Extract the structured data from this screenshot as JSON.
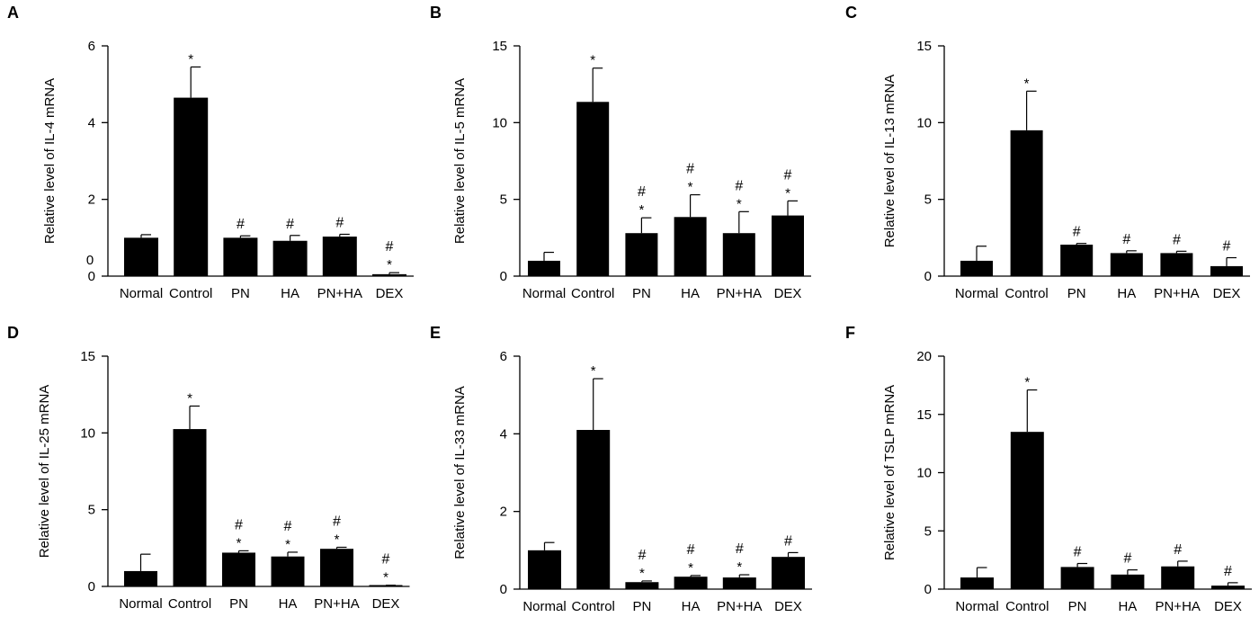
{
  "chart_data": [
    {
      "panel": "A",
      "type": "bar",
      "categories": [
        "Normal",
        "Control",
        "PN",
        "HA",
        "PN+HA",
        "DEX"
      ],
      "values": [
        1.0,
        4.65,
        1.0,
        0.92,
        1.03,
        0.05
      ],
      "errors": [
        0.08,
        0.8,
        0.05,
        0.14,
        0.06,
        0.04
      ],
      "marks": [
        [],
        [
          "*"
        ],
        [
          "#"
        ],
        [
          "#"
        ],
        [
          "#"
        ],
        [
          "#",
          "*"
        ]
      ],
      "ylabel": "Relative level of IL-4 mRNA",
      "ylim": [
        0,
        6
      ],
      "yticks": [
        0,
        2,
        4,
        6
      ],
      "extra_label": "0"
    },
    {
      "panel": "B",
      "type": "bar",
      "categories": [
        "Normal",
        "Control",
        "PN",
        "HA",
        "PN+HA",
        "DEX"
      ],
      "values": [
        1.0,
        11.35,
        2.8,
        3.85,
        2.8,
        3.95
      ],
      "errors": [
        0.55,
        2.2,
        1.0,
        1.45,
        1.4,
        0.95
      ],
      "marks": [
        [],
        [
          "*"
        ],
        [
          "#",
          "*"
        ],
        [
          "#",
          "*"
        ],
        [
          "#",
          "*"
        ],
        [
          "#",
          "*"
        ]
      ],
      "ylabel": "Relative level of IL-5 mRNA",
      "ylim": [
        0,
        15
      ],
      "yticks": [
        0,
        5,
        10,
        15
      ]
    },
    {
      "panel": "C",
      "type": "bar",
      "categories": [
        "Normal",
        "Control",
        "PN",
        "HA",
        "PN+HA",
        "DEX"
      ],
      "values": [
        1.0,
        9.5,
        2.05,
        1.5,
        1.5,
        0.65
      ],
      "errors": [
        0.95,
        2.55,
        0.08,
        0.15,
        0.12,
        0.55
      ],
      "marks": [
        [],
        [
          "*"
        ],
        [
          "#"
        ],
        [
          "#"
        ],
        [
          "#"
        ],
        [
          "#"
        ]
      ],
      "ylabel": "Relative level of IL-13 mRNA",
      "ylim": [
        0,
        15
      ],
      "yticks": [
        0,
        5,
        10,
        15
      ]
    },
    {
      "panel": "D",
      "type": "bar",
      "categories": [
        "Normal",
        "Control",
        "PN",
        "HA",
        "PN+HA",
        "DEX"
      ],
      "values": [
        1.0,
        10.25,
        2.2,
        1.95,
        2.45,
        0.05
      ],
      "errors": [
        1.1,
        1.5,
        0.12,
        0.28,
        0.1,
        0.03
      ],
      "marks": [
        [],
        [
          "*"
        ],
        [
          "#",
          "*"
        ],
        [
          "#",
          "*"
        ],
        [
          "#",
          "*"
        ],
        [
          "#",
          "*"
        ]
      ],
      "ylabel": "Relative level of IL-25 mRNA",
      "ylim": [
        0,
        15
      ],
      "yticks": [
        0,
        5,
        10,
        15
      ]
    },
    {
      "panel": "E",
      "type": "bar",
      "categories": [
        "Normal",
        "Control",
        "PN",
        "HA",
        "PN+HA",
        "DEX"
      ],
      "values": [
        1.0,
        4.1,
        0.18,
        0.32,
        0.3,
        0.83
      ],
      "errors": [
        0.2,
        1.32,
        0.03,
        0.03,
        0.07,
        0.11
      ],
      "marks": [
        [],
        [
          "*"
        ],
        [
          "#",
          "*"
        ],
        [
          "#",
          "*"
        ],
        [
          "#",
          "*"
        ],
        [
          "#"
        ]
      ],
      "ylabel": "Relative level of IL-33 mRNA",
      "ylim": [
        0,
        6
      ],
      "yticks": [
        0,
        2,
        4,
        6
      ]
    },
    {
      "panel": "F",
      "type": "bar",
      "categories": [
        "Normal",
        "Control",
        "PN",
        "HA",
        "PN+HA",
        "DEX"
      ],
      "values": [
        1.0,
        13.5,
        1.9,
        1.25,
        1.95,
        0.3
      ],
      "errors": [
        0.85,
        3.6,
        0.3,
        0.4,
        0.45,
        0.25
      ],
      "marks": [
        [],
        [
          "*"
        ],
        [
          "#"
        ],
        [
          "#"
        ],
        [
          "#"
        ],
        [
          "#"
        ]
      ],
      "ylabel": "Relative level of TSLP mRNA",
      "ylim": [
        0,
        20
      ],
      "yticks": [
        0,
        5,
        10,
        15,
        20
      ]
    }
  ],
  "colors": {
    "bar": "#000000",
    "axis": "#000000"
  }
}
